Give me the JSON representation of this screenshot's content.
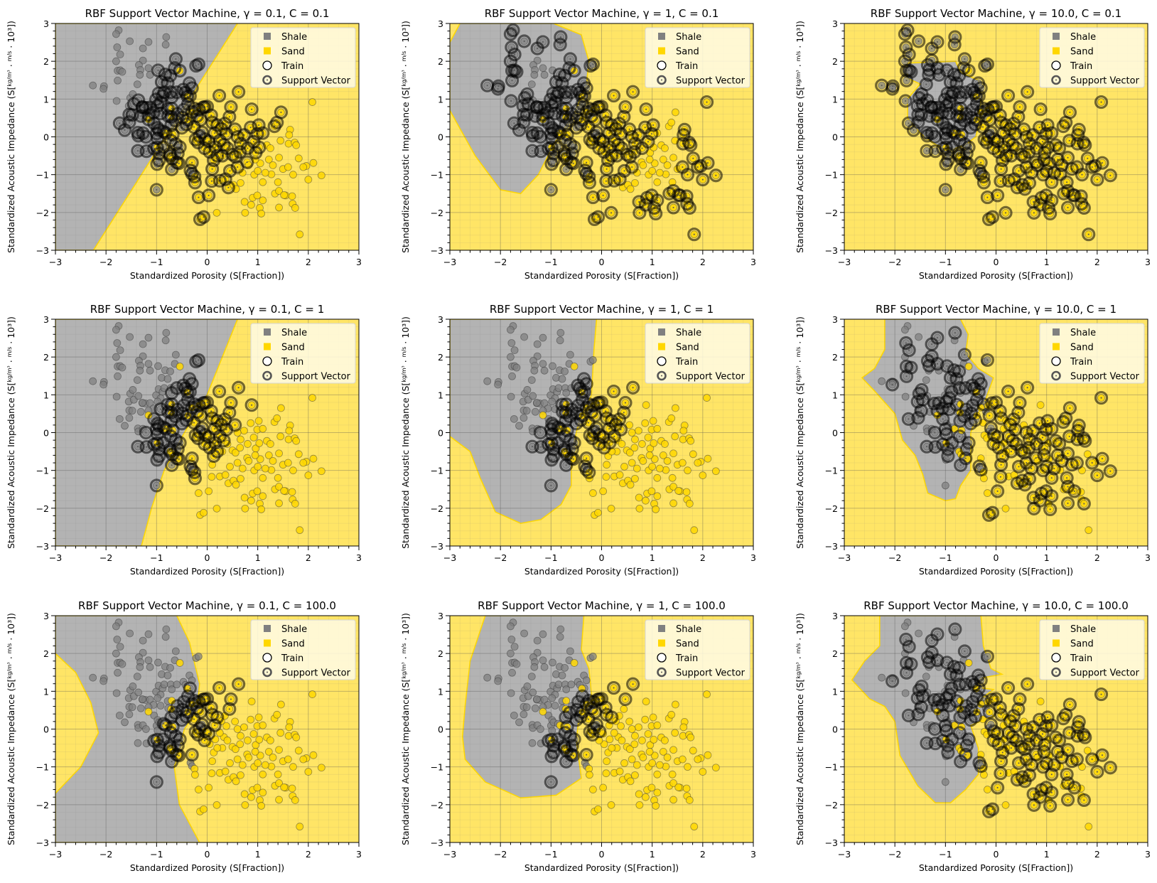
{
  "chart_data": [
    {
      "type": "scatter",
      "title": "RBF Support Vector Machine, γ = 0.1, C = 0.1",
      "gamma": "0.1",
      "C": "0.1",
      "boundary": "linear_a"
    },
    {
      "type": "scatter",
      "title": "RBF Support Vector Machine, γ = 1, C = 0.1",
      "gamma": "1",
      "C": "0.1",
      "boundary": "blob_b"
    },
    {
      "type": "scatter",
      "title": "RBF Support Vector Machine, γ = 10.0, C = 0.1",
      "gamma": "10.0",
      "C": "0.1",
      "boundary": "blob_c"
    },
    {
      "type": "scatter",
      "title": "RBF Support Vector Machine, γ = 0.1, C = 1",
      "gamma": "0.1",
      "C": "1",
      "boundary": "linear_d"
    },
    {
      "type": "scatter",
      "title": "RBF Support Vector Machine, γ = 1, C = 1",
      "gamma": "1",
      "C": "1",
      "boundary": "blob_e"
    },
    {
      "type": "scatter",
      "title": "RBF Support Vector Machine, γ = 10.0, C = 1",
      "gamma": "10.0",
      "C": "1",
      "boundary": "blob_f"
    },
    {
      "type": "scatter",
      "title": "RBF Support Vector Machine, γ = 0.1, C = 100.0",
      "gamma": "0.1",
      "C": "100.0",
      "boundary": "curve_g"
    },
    {
      "type": "scatter",
      "title": "RBF Support Vector Machine, γ = 1, C = 100.0",
      "gamma": "1",
      "C": "100.0",
      "boundary": "blob_h"
    },
    {
      "type": "scatter",
      "title": "RBF Support Vector Machine, γ = 10.0, C = 100.0",
      "gamma": "10.0",
      "C": "100.0",
      "boundary": "blob_i"
    }
  ],
  "shared": {
    "xlabel": "Standardized Porosity (S[Fraction])",
    "ylabel_main": "Standardized Acoustic Impedance (S[",
    "ylabel_frac1_num": "kg",
    "ylabel_frac1_den": "m³",
    "ylabel_frac2_num": "m",
    "ylabel_frac2_den": "s",
    "ylabel_tail": "· 10³])",
    "xlim": [
      -3,
      3
    ],
    "ylim": [
      -3,
      3
    ],
    "xticks": [
      "−3",
      "−2",
      "−1",
      "0",
      "1",
      "2",
      "3"
    ],
    "yticks": [
      "−3",
      "−2",
      "−1",
      "0",
      "1",
      "2",
      "3"
    ],
    "grid": true,
    "legend_position": "top-right",
    "legend": [
      {
        "label": "Shale",
        "marker": "square",
        "color": "#808080"
      },
      {
        "label": "Sand",
        "marker": "square",
        "color": "#FFD700"
      },
      {
        "label": "Train",
        "marker": "open-circle",
        "color": "#000000"
      },
      {
        "label": "Support Vector",
        "marker": "ringed-circle",
        "color": "#555555"
      }
    ],
    "colors": {
      "shale_region": "#b3b3b3",
      "sand_region": "#ffe566",
      "shale_point": "#808080",
      "sand_point": "#FFD700",
      "boundary": "#FFD700"
    }
  },
  "points": {
    "shale": [
      [
        -1.75,
        2.82
      ],
      [
        -1.8,
        2.72
      ],
      [
        -1.53,
        2.53
      ],
      [
        -1.16,
        2.51
      ],
      [
        -0.81,
        2.64
      ],
      [
        -0.82,
        2.44
      ],
      [
        -1.27,
        2.34
      ],
      [
        -1.78,
        2.37
      ],
      [
        -1.72,
        2.18
      ],
      [
        -1.8,
        2.0
      ],
      [
        -1.27,
        2.02
      ],
      [
        -1.77,
        1.75
      ],
      [
        -1.72,
        1.76
      ],
      [
        -1.68,
        1.72
      ],
      [
        -1.77,
        1.49
      ],
      [
        -1.35,
        1.9
      ],
      [
        -1.32,
        1.77
      ],
      [
        -1.33,
        1.64
      ],
      [
        -1.16,
        1.82
      ],
      [
        -1.13,
        1.64
      ],
      [
        -0.97,
        1.76
      ],
      [
        -0.62,
        2.06
      ],
      [
        -0.83,
        1.65
      ],
      [
        -0.73,
        1.62
      ],
      [
        -0.64,
        1.82
      ],
      [
        -2.26,
        1.36
      ],
      [
        -2.04,
        1.34
      ],
      [
        -2.05,
        1.27
      ],
      [
        -1.38,
        1.39
      ],
      [
        -0.9,
        1.45
      ],
      [
        -0.78,
        1.42
      ],
      [
        -1.79,
        0.95
      ],
      [
        -1.52,
        1.03
      ],
      [
        -1.47,
        1.13
      ],
      [
        -1.55,
        0.82
      ],
      [
        -1.45,
        0.87
      ],
      [
        -1.36,
        0.97
      ],
      [
        -1.28,
        0.78
      ],
      [
        -1.22,
        0.77
      ],
      [
        -1.13,
        0.78
      ],
      [
        -1.01,
        0.99
      ],
      [
        -0.96,
        1.15
      ],
      [
        -0.88,
        1.08
      ],
      [
        -0.85,
        1.18
      ],
      [
        -0.72,
        1.18
      ],
      [
        -0.7,
        1.05
      ],
      [
        -0.6,
        1.18
      ],
      [
        -0.92,
        0.91
      ],
      [
        -0.98,
        0.82
      ],
      [
        -1.06,
        0.64
      ],
      [
        -0.92,
        0.62
      ],
      [
        -0.78,
        0.74
      ],
      [
        -0.77,
        0.55
      ],
      [
        -1.73,
        0.36
      ],
      [
        -1.63,
        0.18
      ],
      [
        -1.54,
        0.59
      ],
      [
        -1.54,
        0.39
      ],
      [
        -1.48,
        0.58
      ],
      [
        -1.31,
        0.55
      ],
      [
        -1.28,
        0.79
      ],
      [
        -1.16,
        0.58
      ],
      [
        -1.05,
        0.36
      ],
      [
        -0.98,
        0.24
      ],
      [
        -1.37,
        0.11
      ],
      [
        -1.36,
        0.03
      ],
      [
        -1.27,
        0.1
      ],
      [
        -1.21,
        0.0
      ],
      [
        -1.0,
        0.09
      ],
      [
        -0.98,
        -0.04
      ],
      [
        -0.95,
        0.18
      ],
      [
        -0.86,
        0.14
      ],
      [
        -1.37,
        -0.37
      ],
      [
        -1.2,
        -0.38
      ],
      [
        -1.05,
        -0.31
      ],
      [
        -0.95,
        -0.44
      ],
      [
        -0.87,
        -0.27
      ],
      [
        -0.99,
        -0.72
      ],
      [
        -0.95,
        -0.62
      ],
      [
        -1.0,
        -1.4
      ],
      [
        -0.71,
        0.31
      ],
      [
        -0.63,
        0.43
      ],
      [
        -0.59,
        0.61
      ],
      [
        -0.49,
        0.51
      ],
      [
        -0.46,
        0.72
      ],
      [
        -0.38,
        0.87
      ],
      [
        -0.34,
        1.08
      ],
      [
        -0.47,
        1.25
      ],
      [
        -0.35,
        1.42
      ],
      [
        -0.43,
        1.17
      ],
      [
        -0.3,
        1.29
      ],
      [
        -0.22,
        1.88
      ],
      [
        -0.17,
        1.92
      ],
      [
        -0.72,
        -0.1
      ],
      [
        -0.62,
        -0.19
      ],
      [
        -0.5,
        0.24
      ],
      [
        -0.41,
        0.33
      ],
      [
        -0.54,
        -0.27
      ],
      [
        -0.58,
        -0.44
      ],
      [
        -0.74,
        -0.45
      ],
      [
        -0.7,
        -0.86
      ],
      [
        -0.6,
        -0.68
      ],
      [
        -0.33,
        -0.89
      ],
      [
        -0.3,
        -0.98
      ],
      [
        -0.25,
        0.75
      ],
      [
        -0.2,
        0.55
      ],
      [
        -0.1,
        0.12
      ],
      [
        -0.15,
        0.02
      ],
      [
        -0.05,
        0.79
      ]
    ],
    "sand": [
      [
        -0.54,
        1.75
      ],
      [
        -1.16,
        0.46
      ],
      [
        -0.7,
        0.75
      ],
      [
        -0.71,
        0.53
      ],
      [
        -0.82,
        0.1
      ],
      [
        -0.68,
        0.06
      ],
      [
        -0.99,
        -0.28
      ],
      [
        -0.73,
        -0.5
      ],
      [
        -0.69,
        -0.58
      ],
      [
        -0.56,
        -0.7
      ],
      [
        -0.3,
        -0.68
      ],
      [
        -0.25,
        -1.05
      ],
      [
        -0.24,
        -1.21
      ],
      [
        -0.17,
        -1.6
      ],
      [
        -0.14,
        -2.18
      ],
      [
        -0.07,
        -2.12
      ],
      [
        -0.39,
        1.07
      ],
      [
        -0.38,
        0.45
      ],
      [
        -0.3,
        0.66
      ],
      [
        -0.26,
        0.26
      ],
      [
        -0.23,
        -0.07
      ],
      [
        -0.18,
        -0.15
      ],
      [
        -0.16,
        0.72
      ],
      [
        -0.13,
        0.45
      ],
      [
        -0.08,
        0.78
      ],
      [
        -0.04,
        -0.06
      ],
      [
        0.0,
        0.8
      ],
      [
        0.03,
        -0.12
      ],
      [
        0.08,
        0.57
      ],
      [
        0.1,
        0.38
      ],
      [
        0.13,
        -0.62
      ],
      [
        0.16,
        -0.27
      ],
      [
        0.2,
        0.31
      ],
      [
        0.24,
        1.09
      ],
      [
        0.28,
        0.21
      ],
      [
        0.33,
        -0.21
      ],
      [
        0.38,
        0.08
      ],
      [
        0.44,
        0.53
      ],
      [
        0.47,
        0.79
      ],
      [
        0.5,
        -0.47
      ],
      [
        0.56,
        -0.53
      ],
      [
        0.62,
        1.19
      ],
      [
        0.66,
        -0.18
      ],
      [
        0.73,
        0.05
      ],
      [
        0.79,
        -0.67
      ],
      [
        0.86,
        0.25
      ],
      [
        0.88,
        0.73
      ],
      [
        0.92,
        -0.13
      ],
      [
        0.96,
        -0.42
      ],
      [
        0.99,
        0.08
      ],
      [
        1.02,
        0.31
      ],
      [
        1.03,
        -0.28
      ],
      [
        1.05,
        -0.7
      ],
      [
        1.1,
        -1.2
      ],
      [
        1.18,
        -0.22
      ],
      [
        1.22,
        -0.6
      ],
      [
        1.27,
        -0.99
      ],
      [
        1.33,
        0.28
      ],
      [
        1.38,
        0.38
      ],
      [
        1.42,
        -0.55
      ],
      [
        1.46,
        0.65
      ],
      [
        1.5,
        -0.85
      ],
      [
        1.55,
        -1.55
      ],
      [
        1.61,
        -0.18
      ],
      [
        1.64,
        0.19
      ],
      [
        1.68,
        -1.57
      ],
      [
        1.73,
        -0.15
      ],
      [
        1.76,
        -0.22
      ],
      [
        1.81,
        -0.57
      ],
      [
        1.96,
        -0.77
      ],
      [
        2.0,
        -1.13
      ],
      [
        2.08,
        0.92
      ],
      [
        2.1,
        -0.69
      ],
      [
        2.26,
        -1.02
      ],
      [
        1.83,
        -2.58
      ],
      [
        0.19,
        -2.01
      ],
      [
        0.03,
        -1.55
      ],
      [
        0.09,
        -1.17
      ],
      [
        0.25,
        -1.16
      ],
      [
        0.36,
        -1.12
      ],
      [
        0.42,
        -1.34
      ],
      [
        0.52,
        -1.27
      ],
      [
        0.57,
        -1.38
      ],
      [
        0.66,
        -1.22
      ],
      [
        0.74,
        -1.72
      ],
      [
        0.75,
        -2.01
      ],
      [
        0.87,
        -1.8
      ],
      [
        0.9,
        -1.61
      ],
      [
        0.99,
        -1.55
      ],
      [
        1.04,
        -1.88
      ],
      [
        1.07,
        -2.03
      ],
      [
        1.1,
        -1.68
      ],
      [
        1.34,
        -1.5
      ],
      [
        1.42,
        -1.87
      ],
      [
        1.42,
        -1.43
      ],
      [
        1.52,
        -1.54
      ],
      [
        1.69,
        -1.77
      ],
      [
        1.74,
        -1.88
      ],
      [
        0.45,
        -0.9
      ],
      [
        0.6,
        -0.8
      ],
      [
        0.7,
        -0.95
      ],
      [
        0.82,
        -0.75
      ],
      [
        0.93,
        -1.0
      ],
      [
        1.0,
        -0.9
      ],
      [
        1.15,
        -0.95
      ],
      [
        1.3,
        -0.75
      ],
      [
        1.4,
        -1.2
      ],
      [
        1.6,
        -0.8
      ],
      [
        1.7,
        -1.0
      ],
      [
        1.9,
        -0.8
      ],
      [
        0.3,
        -0.5
      ],
      [
        0.4,
        -0.3
      ],
      [
        0.55,
        0.2
      ],
      [
        0.65,
        -0.4
      ],
      [
        0.8,
        -0.3
      ],
      [
        0.95,
        -0.6
      ],
      [
        1.1,
        0.1
      ],
      [
        1.25,
        -0.3
      ],
      [
        0.15,
        0.1
      ],
      [
        0.25,
        -0.1
      ],
      [
        0.35,
        0.35
      ],
      [
        0.05,
        -0.4
      ],
      [
        -0.05,
        -0.3
      ],
      [
        0.1,
        -0.85
      ],
      [
        0.2,
        -0.5
      ],
      [
        0.6,
        0.0
      ],
      [
        1.45,
        -0.1
      ],
      [
        1.62,
        0.05
      ]
    ]
  }
}
